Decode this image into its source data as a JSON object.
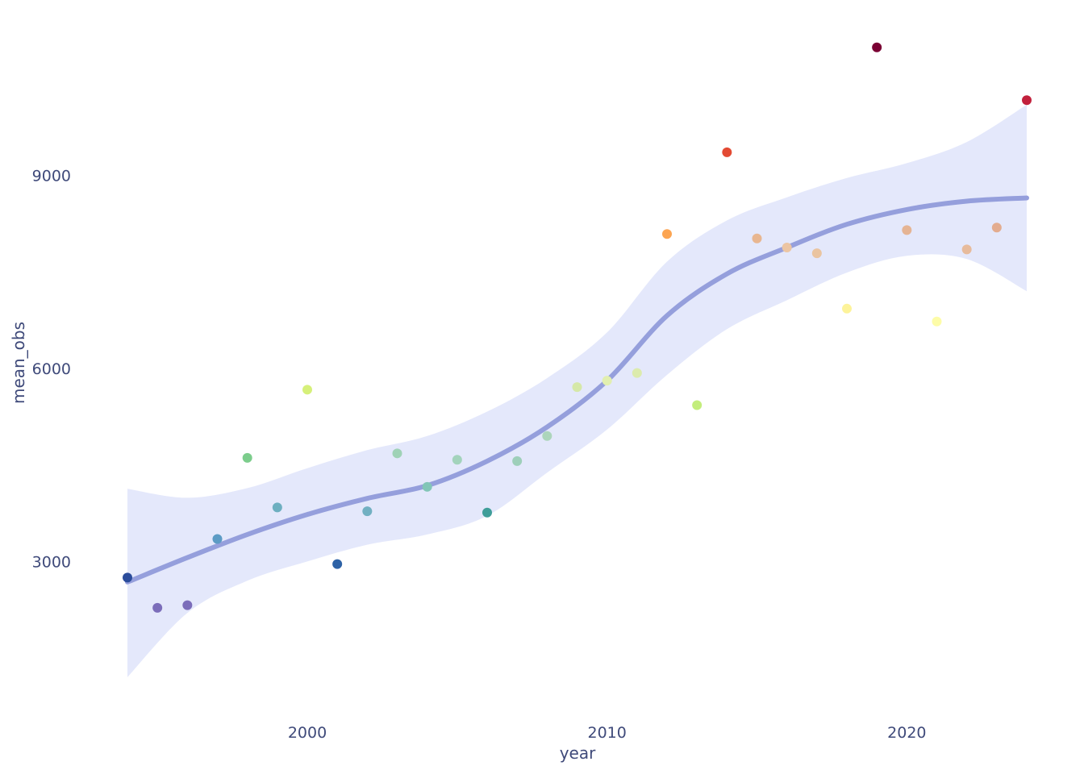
{
  "chart_data": {
    "type": "scatter",
    "title": "",
    "xlabel": "year",
    "ylabel": "mean_obs",
    "xlim": [
      1994,
      2024
    ],
    "ylim": [
      1100,
      11050
    ],
    "x_ticks": [
      2000,
      2010,
      2020
    ],
    "y_ticks": [
      3000,
      6000,
      9000
    ],
    "grid": false,
    "legend": "none",
    "points": [
      {
        "x": 1994,
        "y": 2750,
        "color": "#2b4c9b"
      },
      {
        "x": 1995,
        "y": 2280,
        "color": "#7b6dba"
      },
      {
        "x": 1996,
        "y": 2320,
        "color": "#7b6dba"
      },
      {
        "x": 1997,
        "y": 3350,
        "color": "#5c9bc5"
      },
      {
        "x": 1998,
        "y": 4610,
        "color": "#7ccd8c"
      },
      {
        "x": 1999,
        "y": 3840,
        "color": "#6dafc0"
      },
      {
        "x": 2000,
        "y": 5670,
        "color": "#d6f07a"
      },
      {
        "x": 2001,
        "y": 2960,
        "color": "#2d62a6"
      },
      {
        "x": 2002,
        "y": 3780,
        "color": "#72b0c2"
      },
      {
        "x": 2003,
        "y": 4680,
        "color": "#9fd2b6"
      },
      {
        "x": 2004,
        "y": 4160,
        "color": "#82c6b7"
      },
      {
        "x": 2005,
        "y": 4580,
        "color": "#a3d3bc"
      },
      {
        "x": 2006,
        "y": 3760,
        "color": "#3f9e99"
      },
      {
        "x": 2007,
        "y": 4560,
        "color": "#9ecfba"
      },
      {
        "x": 2008,
        "y": 4950,
        "color": "#acd5bb"
      },
      {
        "x": 2009,
        "y": 5710,
        "color": "#d5e8a8"
      },
      {
        "x": 2010,
        "y": 5810,
        "color": "#e2efb0"
      },
      {
        "x": 2011,
        "y": 5930,
        "color": "#dcebad"
      },
      {
        "x": 2012,
        "y": 8090,
        "color": "#fca552"
      },
      {
        "x": 2013,
        "y": 5430,
        "color": "#c3ed7c"
      },
      {
        "x": 2014,
        "y": 9360,
        "color": "#e34a33"
      },
      {
        "x": 2015,
        "y": 8020,
        "color": "#e8b690"
      },
      {
        "x": 2016,
        "y": 7880,
        "color": "#ecc5a3"
      },
      {
        "x": 2017,
        "y": 7790,
        "color": "#eac4a0"
      },
      {
        "x": 2018,
        "y": 6930,
        "color": "#fdf39a"
      },
      {
        "x": 2019,
        "y": 10990,
        "color": "#7a0033"
      },
      {
        "x": 2020,
        "y": 8150,
        "color": "#e5b494"
      },
      {
        "x": 2021,
        "y": 6730,
        "color": "#fdfca8"
      },
      {
        "x": 2022,
        "y": 7850,
        "color": "#e7bb9c"
      },
      {
        "x": 2023,
        "y": 8190,
        "color": "#e3ac8f"
      },
      {
        "x": 2024,
        "y": 10170,
        "color": "#c2203c"
      }
    ],
    "trend": {
      "color": "#959fdc",
      "band_color": "#e4e8fb",
      "points": [
        {
          "x": 1994,
          "y": 2680,
          "lo": 1200,
          "hi": 4130
        },
        {
          "x": 1996,
          "y": 3060,
          "lo": 2200,
          "hi": 3990
        },
        {
          "x": 1998,
          "y": 3420,
          "lo": 2700,
          "hi": 4140
        },
        {
          "x": 2000,
          "y": 3730,
          "lo": 3000,
          "hi": 4450
        },
        {
          "x": 2002,
          "y": 3980,
          "lo": 3260,
          "hi": 4730
        },
        {
          "x": 2004,
          "y": 4180,
          "lo": 3420,
          "hi": 4950
        },
        {
          "x": 2006,
          "y": 4560,
          "lo": 3710,
          "hi": 5330
        },
        {
          "x": 2008,
          "y": 5090,
          "lo": 4380,
          "hi": 5850
        },
        {
          "x": 2010,
          "y": 5810,
          "lo": 5050,
          "hi": 6560
        },
        {
          "x": 2012,
          "y": 6820,
          "lo": 5900,
          "hi": 7660
        },
        {
          "x": 2014,
          "y": 7470,
          "lo": 6610,
          "hi": 8300
        },
        {
          "x": 2016,
          "y": 7880,
          "lo": 7060,
          "hi": 8660
        },
        {
          "x": 2018,
          "y": 8240,
          "lo": 7490,
          "hi": 8960
        },
        {
          "x": 2020,
          "y": 8470,
          "lo": 7750,
          "hi": 9190
        },
        {
          "x": 2022,
          "y": 8600,
          "lo": 7700,
          "hi": 9520
        },
        {
          "x": 2024,
          "y": 8650,
          "lo": 7200,
          "hi": 10100
        }
      ]
    }
  }
}
